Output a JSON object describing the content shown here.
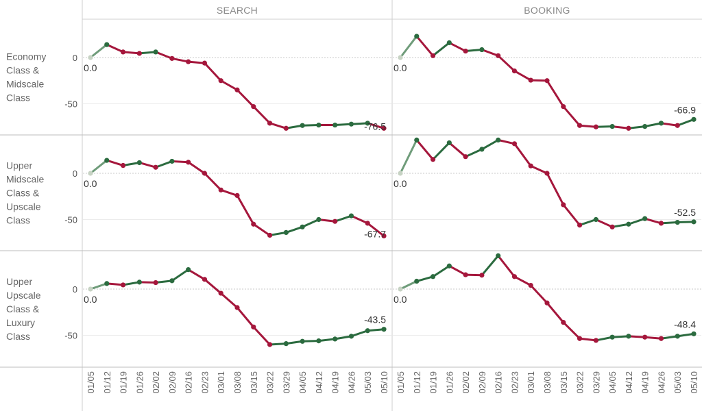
{
  "chart_data": {
    "type": "line",
    "columns": [
      "SEARCH",
      "BOOKING"
    ],
    "rows": [
      [
        "Economy",
        "Class &",
        "Midscale",
        "Class"
      ],
      [
        "Upper",
        "Midscale",
        "Class &",
        "Upscale",
        "Class"
      ],
      [
        "Upper",
        "Upscale",
        "Class &",
        "Luxury",
        "Class"
      ]
    ],
    "x": [
      "01/05",
      "01/12",
      "01/19",
      "01/26",
      "02/02",
      "02/09",
      "02/16",
      "02/23",
      "03/01",
      "03/08",
      "03/15",
      "03/22",
      "03/29",
      "04/05",
      "04/12",
      "04/19",
      "04/26",
      "05/03",
      "05/10"
    ],
    "yticks": [
      0,
      -50
    ],
    "panels": [
      [
        {
          "values": [
            0,
            14,
            6,
            4.5,
            6,
            -1,
            -4.5,
            -6,
            -25,
            -35,
            -53,
            -71,
            -76.5,
            -73.5,
            -73,
            -73,
            -72,
            -71,
            -76.5
          ],
          "first_label": "0.0",
          "last_label": "-76.5"
        },
        {
          "values": [
            0,
            23,
            2,
            16,
            7,
            8.5,
            2,
            -14.5,
            -24.5,
            -25,
            -53,
            -73.5,
            -75,
            -74.5,
            -76.5,
            -74.5,
            -71,
            -73.5,
            -66.9
          ],
          "first_label": "0.0",
          "last_label": "-66.9"
        }
      ],
      [
        {
          "values": [
            0,
            14,
            8.5,
            11.5,
            6.5,
            13,
            12,
            0,
            -18,
            -24,
            -55,
            -67,
            -64,
            -58,
            -50,
            -52,
            -46,
            -54,
            -67.7
          ],
          "first_label": "0.0",
          "last_label": "-67.7"
        },
        {
          "values": [
            0,
            36,
            15,
            33,
            18,
            26,
            36,
            32,
            8,
            0,
            -34,
            -56,
            -50,
            -58,
            -55,
            -49,
            -54,
            -53,
            -52.5
          ],
          "first_label": "0.0",
          "last_label": "-52.5"
        }
      ],
      [
        {
          "values": [
            0,
            6,
            4.5,
            7.5,
            7,
            9,
            21,
            10.5,
            -4.5,
            -20,
            -41,
            -60,
            -59,
            -56.5,
            -56,
            -54,
            -51,
            -45,
            -43.5
          ],
          "first_label": "0.0",
          "last_label": "-43.5"
        },
        {
          "values": [
            0,
            8.5,
            13.5,
            25,
            15.5,
            15,
            36,
            13.5,
            4,
            -15,
            -36,
            -53.5,
            -55.5,
            -52,
            -51,
            -52,
            -53.5,
            -51,
            -48.4
          ],
          "first_label": "0.0",
          "last_label": "-48.4"
        }
      ]
    ],
    "colors": {
      "up": "#2b6b3f",
      "down": "#a5173c",
      "neutral": "#c7d3c4",
      "grid": "#cccccc",
      "border": "#cfcfcf"
    }
  }
}
